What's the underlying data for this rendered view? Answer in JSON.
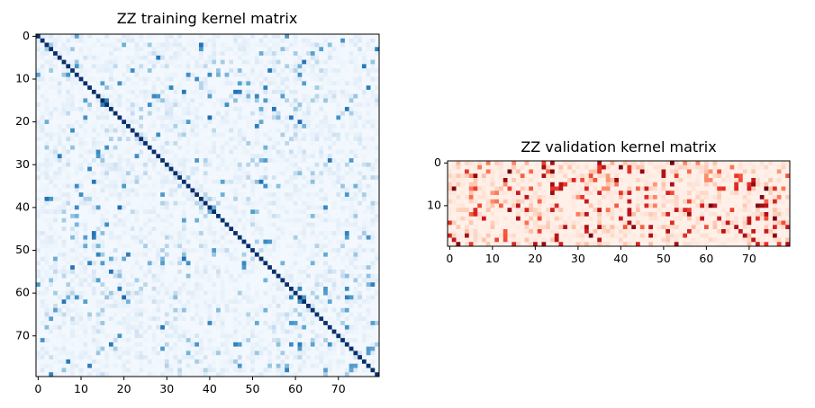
{
  "chart_data": [
    {
      "type": "heatmap",
      "title": "ZZ training kernel matrix",
      "colormap": "Blues",
      "rows": 80,
      "cols": 80,
      "diagonal_value": 1.0,
      "value_range": [
        0,
        1
      ],
      "x_ticks": [
        0,
        10,
        20,
        30,
        40,
        50,
        60,
        70
      ],
      "y_ticks": [
        0,
        10,
        20,
        30,
        40,
        50,
        60,
        70
      ]
    },
    {
      "type": "heatmap",
      "title": "ZZ validation kernel matrix",
      "colormap": "Reds",
      "rows": 20,
      "cols": 80,
      "value_range": [
        0,
        1
      ],
      "x_ticks": [
        0,
        10,
        20,
        30,
        40,
        50,
        60,
        70
      ],
      "y_ticks": [
        0,
        10
      ]
    }
  ]
}
